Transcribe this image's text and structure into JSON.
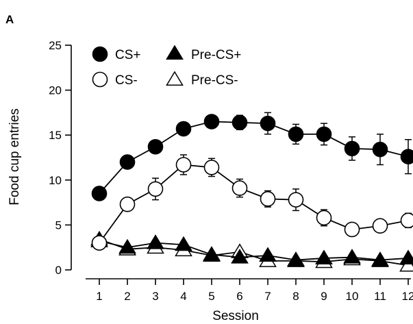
{
  "panel_label": "A",
  "chart_data": {
    "type": "line",
    "title": "",
    "xlabel": "Session",
    "ylabel": "Food cup entries",
    "x": [
      1,
      2,
      3,
      4,
      5,
      6,
      7,
      8,
      9,
      10,
      11,
      12
    ],
    "xlim": [
      0.5,
      12.5
    ],
    "ylim": [
      0,
      25
    ],
    "yticks": [
      0,
      5,
      10,
      15,
      20,
      25
    ],
    "grid": false,
    "legend_position": "top-left",
    "series": [
      {
        "name": "CS+",
        "marker": "circle",
        "fill": "#000000",
        "values": [
          8.5,
          12.0,
          13.7,
          15.7,
          16.5,
          16.4,
          16.3,
          15.1,
          15.1,
          13.5,
          13.4,
          12.6
        ],
        "errors": [
          0.3,
          0.4,
          0.4,
          0.5,
          0.4,
          0.8,
          1.2,
          1.1,
          1.2,
          1.3,
          1.7,
          1.9
        ]
      },
      {
        "name": "CS-",
        "marker": "circle",
        "fill": "#ffffff",
        "values": [
          3.0,
          7.3,
          9.0,
          11.7,
          11.4,
          9.1,
          7.9,
          7.8,
          5.8,
          4.5,
          4.9,
          5.5
        ],
        "errors": [
          0.3,
          0.5,
          1.2,
          1.1,
          1.0,
          1.0,
          0.9,
          1.2,
          0.9,
          0.3,
          0.3,
          0.8
        ]
      },
      {
        "name": "Pre-CS+",
        "marker": "triangle",
        "fill": "#000000",
        "values": [
          3.2,
          2.5,
          3.0,
          2.8,
          1.7,
          1.4,
          1.6,
          1.1,
          1.3,
          1.4,
          1.1,
          1.3
        ],
        "errors": [
          0.2,
          0.2,
          0.3,
          0.3,
          0.2,
          0.2,
          0.2,
          0.2,
          0.2,
          0.2,
          0.2,
          0.2
        ]
      },
      {
        "name": "Pre-CS-",
        "marker": "triangle",
        "fill": "#ffffff",
        "values": [
          3.4,
          2.3,
          2.5,
          2.2,
          1.6,
          2.0,
          1.0,
          1.0,
          0.9,
          1.2,
          1.0,
          0.5
        ],
        "errors": [
          0.2,
          0.2,
          0.2,
          0.2,
          0.2,
          0.2,
          0.2,
          0.2,
          0.2,
          0.2,
          0.2,
          0.2
        ]
      }
    ]
  }
}
